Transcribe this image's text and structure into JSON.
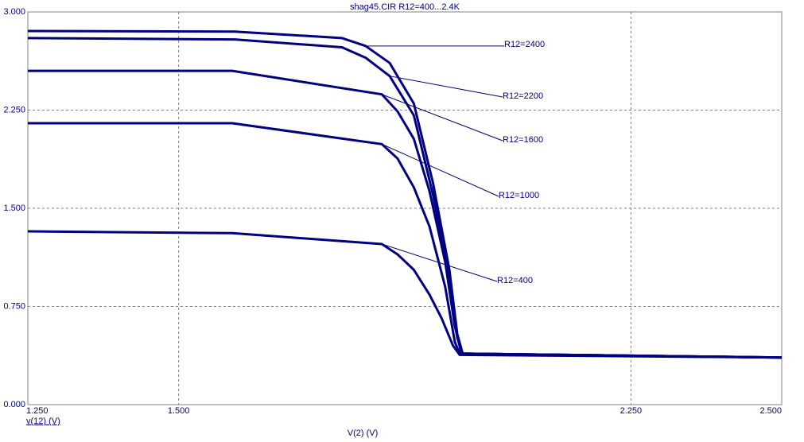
{
  "chart_data": {
    "type": "line",
    "title": "shag45.CIR R12=400...2.4K",
    "x_label": "V(2) (V)",
    "y_label": "v(12) (V)",
    "xlim": [
      1.25,
      2.5
    ],
    "ylim": [
      0,
      3
    ],
    "xticks": [
      {
        "value": 1.25,
        "label": "1.250"
      },
      {
        "value": 1.5,
        "label": "1.500"
      },
      {
        "value": 2.25,
        "label": "2.250"
      },
      {
        "value": 2.5,
        "label": "2.500"
      }
    ],
    "yticks": [
      {
        "value": 0,
        "label": "0.000"
      },
      {
        "value": 0.75,
        "label": "0.750"
      },
      {
        "value": 1.5,
        "label": "1.500"
      },
      {
        "value": 2.25,
        "label": "2.250"
      },
      {
        "value": 3,
        "label": "3.000"
      }
    ],
    "grid": true,
    "series": [
      {
        "name": "R12=2400",
        "color": "#000080",
        "x": [
          1.25,
          1.593,
          1.771,
          1.81,
          1.85,
          1.89,
          1.922,
          1.949,
          1.962,
          1.971,
          2.5
        ],
        "values": [
          2.854,
          2.85,
          2.8,
          2.74,
          2.61,
          2.3,
          1.69,
          1.03,
          0.54,
          0.39,
          0.36
        ]
      },
      {
        "name": "R12=2200",
        "color": "#000080",
        "x": [
          1.25,
          1.593,
          1.771,
          1.81,
          1.85,
          1.89,
          1.922,
          1.949,
          1.962,
          1.971,
          2.5
        ],
        "values": [
          2.8,
          2.79,
          2.73,
          2.65,
          2.51,
          2.21,
          1.6,
          0.97,
          0.51,
          0.39,
          0.36
        ]
      },
      {
        "name": "R12=1600",
        "color": "#000080",
        "x": [
          1.25,
          1.589,
          1.837,
          1.863,
          1.89,
          1.916,
          1.942,
          1.958,
          1.969,
          2.5
        ],
        "values": [
          2.55,
          2.55,
          2.37,
          2.24,
          2.03,
          1.63,
          1.09,
          0.6,
          0.39,
          0.36
        ]
      },
      {
        "name": "R12=1000",
        "color": "#000080",
        "x": [
          1.25,
          1.589,
          1.837,
          1.863,
          1.89,
          1.916,
          1.942,
          1.958,
          1.966,
          2.5
        ],
        "values": [
          2.15,
          2.15,
          1.99,
          1.88,
          1.66,
          1.36,
          0.9,
          0.48,
          0.39,
          0.36
        ]
      },
      {
        "name": "R12=400",
        "color": "#000080",
        "x": [
          1.25,
          1.589,
          1.837,
          1.863,
          1.89,
          1.916,
          1.936,
          1.955,
          1.966,
          2.5
        ],
        "values": [
          1.324,
          1.31,
          1.227,
          1.148,
          1.03,
          0.84,
          0.66,
          0.45,
          0.38,
          0.36
        ]
      }
    ]
  }
}
